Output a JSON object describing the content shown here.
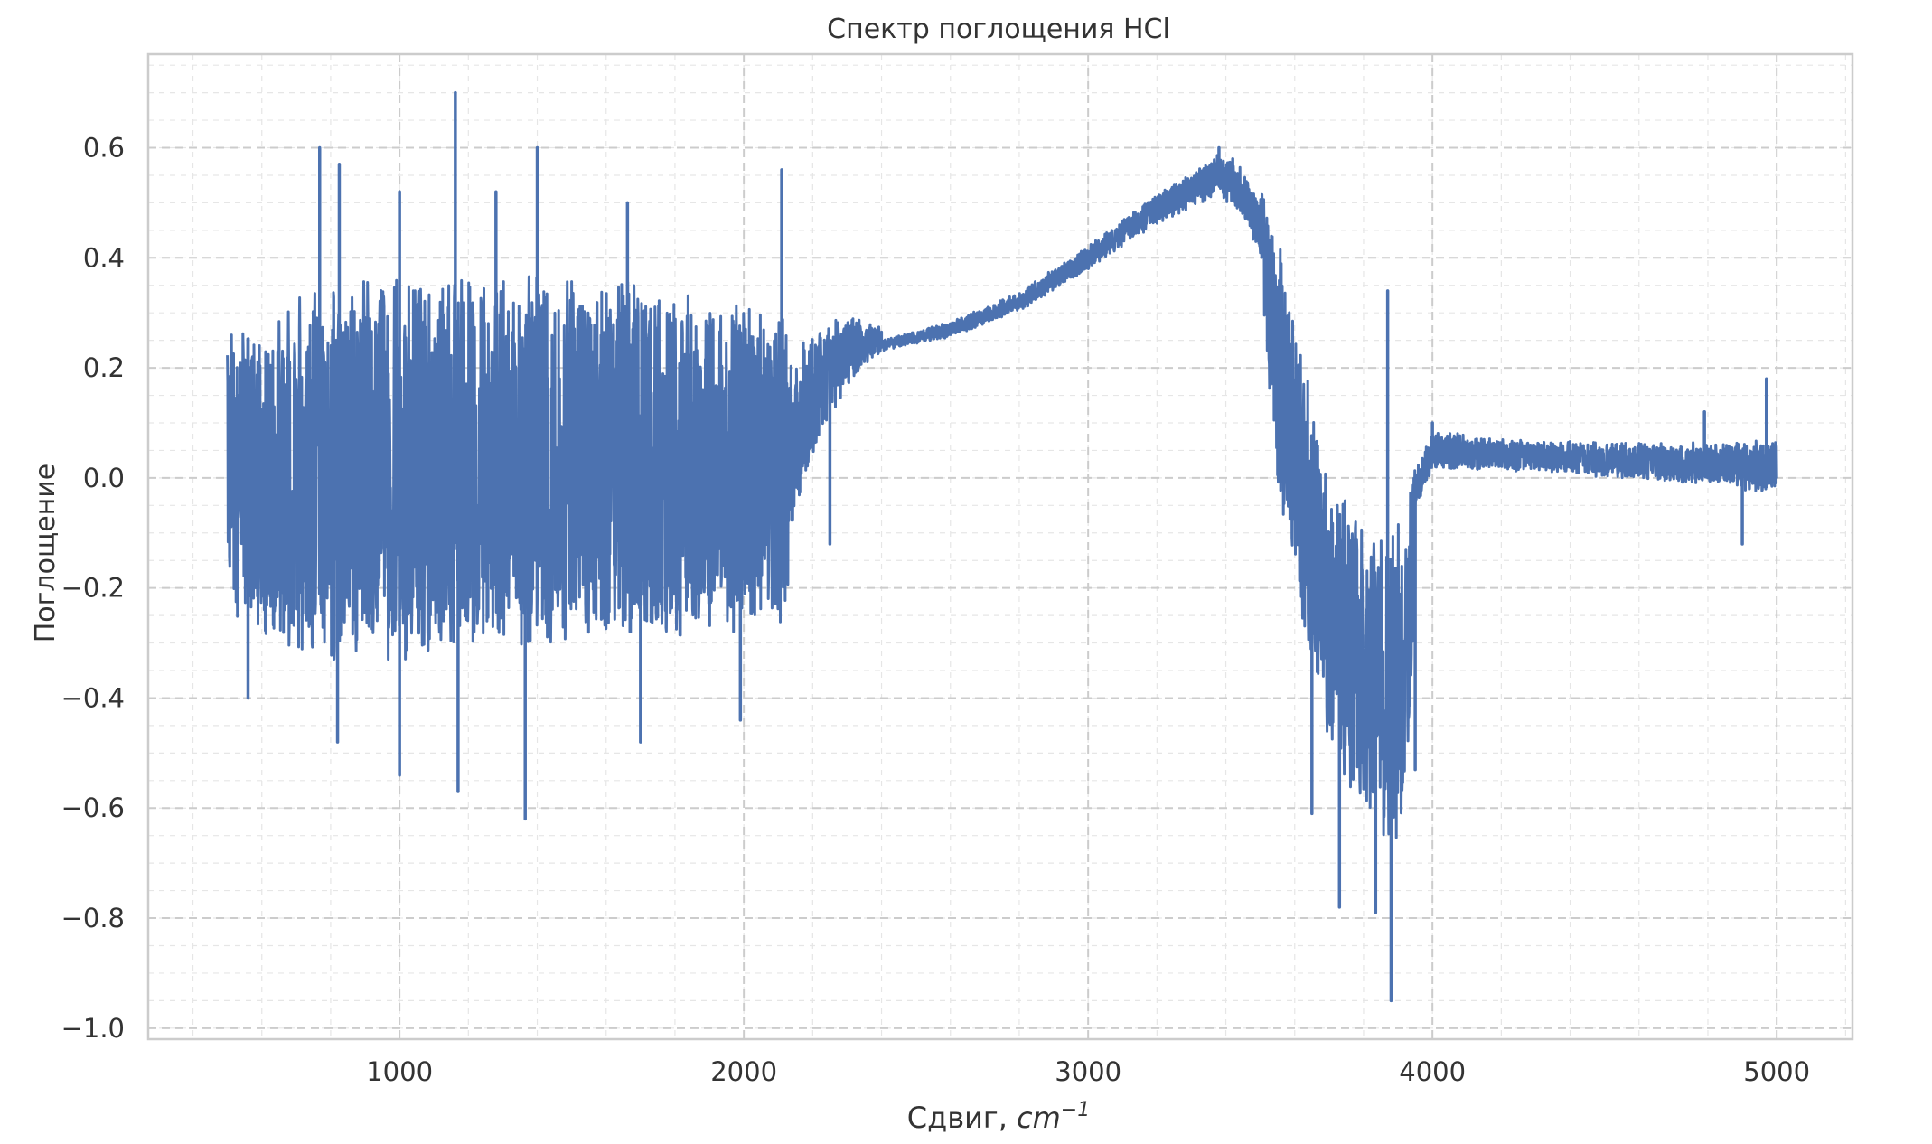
{
  "chart_data": {
    "type": "line",
    "title": "Спектр поглощения HCl",
    "xlabel": "Сдвиг, ",
    "xlabel_unit": "cm",
    "xlabel_unit_exponent": "−1",
    "ylabel": "Поглощение",
    "xlim": [
      270,
      5220
    ],
    "ylim": [
      -1.02,
      0.77
    ],
    "x_ticks": [
      1000,
      2000,
      3000,
      4000,
      5000
    ],
    "x_tick_labels": [
      "1000",
      "2000",
      "3000",
      "4000",
      "5000"
    ],
    "y_ticks": [
      0.6,
      0.4,
      0.2,
      0.0,
      -0.2,
      -0.4,
      -0.6,
      -0.8,
      -1.0
    ],
    "y_tick_labels": [
      "0.6",
      "0.4",
      "0.2",
      "0.0",
      "−0.2",
      "−0.4",
      "−0.6",
      "−0.8",
      "−1.0"
    ],
    "grid": true,
    "minor_grid": true,
    "legend": false,
    "series": [
      {
        "color": "#4c72b0",
        "segments": [
          {
            "x0": 500,
            "x1": 2130,
            "center": [
              [
                500,
                0.0
              ],
              [
                700,
                0.01
              ],
              [
                1000,
                0.02
              ],
              [
                1300,
                0.03
              ],
              [
                1700,
                0.03
              ],
              [
                2000,
                0.02
              ],
              [
                2130,
                0.02
              ]
            ],
            "amplitude": [
              [
                500,
                0.23
              ],
              [
                700,
                0.3
              ],
              [
                1000,
                0.32
              ],
              [
                1400,
                0.32
              ],
              [
                1800,
                0.29
              ],
              [
                2130,
                0.26
              ]
            ],
            "density": 1.0
          },
          {
            "x0": 2130,
            "x1": 2400,
            "center": [
              [
                2130,
                0.05
              ],
              [
                2180,
                0.12
              ],
              [
                2250,
                0.2
              ],
              [
                2330,
                0.24
              ],
              [
                2400,
                0.25
              ]
            ],
            "amplitude": [
              [
                2130,
                0.2
              ],
              [
                2250,
                0.11
              ],
              [
                2350,
                0.05
              ],
              [
                2400,
                0.03
              ]
            ],
            "density": 0.7
          },
          {
            "x0": 2400,
            "x1": 3500,
            "center": [
              [
                2400,
                0.24
              ],
              [
                2600,
                0.27
              ],
              [
                2800,
                0.32
              ],
              [
                3000,
                0.4
              ],
              [
                3200,
                0.49
              ],
              [
                3380,
                0.55
              ],
              [
                3450,
                0.52
              ],
              [
                3500,
                0.45
              ]
            ],
            "amplitude": [
              [
                2400,
                0.015
              ],
              [
                2800,
                0.025
              ],
              [
                3100,
                0.035
              ],
              [
                3300,
                0.045
              ],
              [
                3500,
                0.07
              ]
            ],
            "density": 0.6
          },
          {
            "x0": 3500,
            "x1": 3720,
            "center": [
              [
                3500,
                0.45
              ],
              [
                3550,
                0.2
              ],
              [
                3600,
                0.05
              ],
              [
                3650,
                -0.1
              ],
              [
                3700,
                -0.25
              ],
              [
                3720,
                -0.3
              ]
            ],
            "amplitude": [
              [
                3500,
                0.1
              ],
              [
                3550,
                0.28
              ],
              [
                3650,
                0.28
              ],
              [
                3720,
                0.25
              ]
            ],
            "density": 0.8
          },
          {
            "x0": 3720,
            "x1": 3950,
            "center": [
              [
                3720,
                -0.3
              ],
              [
                3800,
                -0.35
              ],
              [
                3880,
                -0.38
              ],
              [
                3920,
                -0.35
              ],
              [
                3950,
                -0.1
              ]
            ],
            "amplitude": [
              [
                3720,
                0.3
              ],
              [
                3800,
                0.3
              ],
              [
                3900,
                0.32
              ],
              [
                3950,
                0.18
              ]
            ],
            "density": 0.8
          },
          {
            "x0": 3950,
            "x1": 5000,
            "center": [
              [
                3950,
                -0.02
              ],
              [
                4000,
                0.05
              ],
              [
                4300,
                0.04
              ],
              [
                4600,
                0.03
              ],
              [
                5000,
                0.02
              ]
            ],
            "amplitude": [
              [
                3950,
                0.06
              ],
              [
                4300,
                0.045
              ],
              [
                4700,
                0.06
              ],
              [
                5000,
                0.08
              ]
            ],
            "density": 0.5
          }
        ],
        "spikes": [
          [
            768,
            0.6
          ],
          [
            825,
            0.57
          ],
          [
            1000,
            0.52
          ],
          [
            1162,
            0.7
          ],
          [
            1280,
            0.52
          ],
          [
            1400,
            0.6
          ],
          [
            1662,
            0.5
          ],
          [
            2110,
            0.56
          ],
          [
            3380,
            0.6
          ],
          [
            3420,
            0.58
          ],
          [
            3870,
            0.34
          ],
          [
            4000,
            0.1
          ],
          [
            4790,
            0.12
          ],
          [
            4970,
            0.18
          ],
          [
            560,
            -0.4
          ],
          [
            820,
            -0.48
          ],
          [
            1000,
            -0.54
          ],
          [
            1170,
            -0.57
          ],
          [
            1365,
            -0.62
          ],
          [
            1700,
            -0.48
          ],
          [
            1990,
            -0.44
          ],
          [
            2250,
            -0.12
          ],
          [
            3650,
            -0.61
          ],
          [
            3730,
            -0.78
          ],
          [
            3835,
            -0.79
          ],
          [
            3880,
            -0.95
          ],
          [
            3950,
            -0.53
          ],
          [
            4900,
            -0.12
          ]
        ]
      }
    ]
  }
}
